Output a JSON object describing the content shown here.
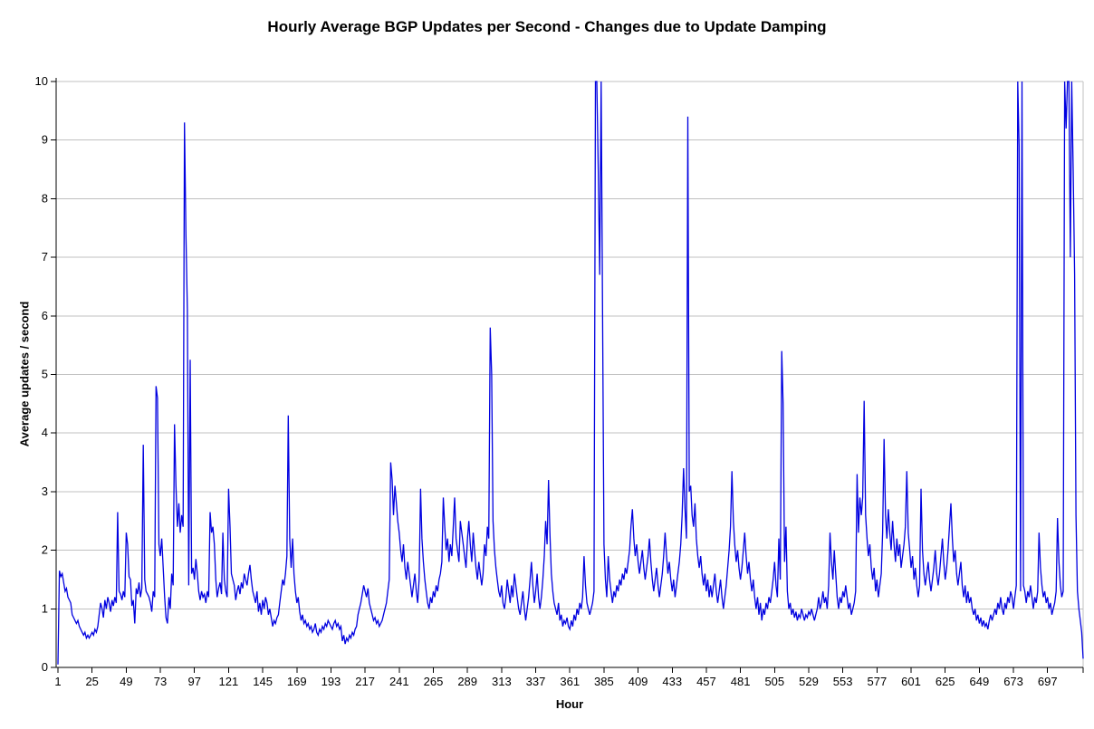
{
  "chart_data": {
    "type": "line",
    "title": "Hourly Average BGP Updates per Second - Changes due to Update Damping",
    "xlabel": "Hour",
    "ylabel": "Average updates / second",
    "xlim": [
      1,
      722
    ],
    "ylim": [
      0,
      10
    ],
    "xticks": [
      1,
      25,
      49,
      73,
      97,
      121,
      145,
      169,
      193,
      217,
      241,
      265,
      289,
      313,
      337,
      361,
      385,
      409,
      433,
      457,
      481,
      505,
      529,
      553,
      577,
      601,
      625,
      649,
      673,
      697
    ],
    "yticks": [
      0,
      1,
      2,
      3,
      4,
      5,
      6,
      7,
      8,
      9,
      10
    ],
    "grid": "horizontal",
    "legend": "none",
    "line_color": "#0000e0",
    "gridline_color": "#c0c0c0",
    "axis_color": "#000000",
    "background_color": "#ffffff",
    "x_unit": "hour",
    "series": [
      {
        "name": "Hourly average BGP updates per second",
        "color": "#0000e0",
        "values": [
          0.05,
          1.65,
          1.55,
          1.6,
          1.45,
          1.3,
          1.35,
          1.2,
          1.15,
          1.1,
          0.9,
          0.85,
          0.8,
          0.75,
          0.8,
          0.7,
          0.65,
          0.6,
          0.55,
          0.6,
          0.5,
          0.55,
          0.5,
          0.55,
          0.6,
          0.55,
          0.65,
          0.6,
          0.7,
          0.9,
          1.1,
          1.0,
          0.85,
          1.15,
          1.0,
          1.2,
          1.1,
          0.95,
          1.15,
          1.05,
          1.2,
          1.1,
          2.65,
          1.3,
          1.25,
          1.15,
          1.3,
          1.2,
          2.3,
          2.1,
          1.55,
          1.5,
          1.05,
          1.15,
          0.75,
          1.35,
          1.25,
          1.45,
          1.2,
          1.35,
          3.8,
          1.5,
          1.3,
          1.25,
          1.2,
          1.1,
          0.95,
          1.3,
          1.2,
          4.8,
          4.6,
          2.1,
          1.9,
          2.2,
          1.7,
          1.2,
          0.85,
          0.75,
          1.2,
          1.0,
          1.6,
          1.4,
          4.15,
          3.1,
          2.4,
          2.8,
          2.3,
          2.6,
          2.4,
          9.3,
          7.4,
          6.1,
          1.4,
          5.25,
          1.6,
          1.7,
          1.5,
          1.85,
          1.6,
          1.3,
          1.15,
          1.3,
          1.2,
          1.25,
          1.1,
          1.3,
          1.2,
          2.65,
          2.3,
          2.4,
          2.1,
          1.5,
          1.2,
          1.35,
          1.45,
          1.25,
          2.3,
          1.5,
          1.3,
          1.2,
          3.05,
          2.4,
          1.6,
          1.5,
          1.4,
          1.15,
          1.3,
          1.4,
          1.25,
          1.45,
          1.35,
          1.6,
          1.5,
          1.4,
          1.6,
          1.75,
          1.5,
          1.3,
          1.2,
          1.1,
          1.3,
          0.95,
          1.1,
          0.9,
          1.15,
          1.0,
          1.2,
          1.1,
          0.9,
          1.0,
          0.85,
          0.7,
          0.8,
          0.75,
          0.85,
          0.9,
          1.1,
          1.3,
          1.5,
          1.4,
          1.6,
          1.9,
          4.3,
          2.2,
          1.7,
          2.2,
          1.6,
          1.3,
          1.1,
          1.2,
          0.95,
          0.8,
          0.9,
          0.75,
          0.8,
          0.7,
          0.75,
          0.65,
          0.7,
          0.6,
          0.65,
          0.75,
          0.6,
          0.55,
          0.65,
          0.6,
          0.7,
          0.65,
          0.75,
          0.7,
          0.8,
          0.75,
          0.7,
          0.65,
          0.75,
          0.8,
          0.7,
          0.75,
          0.65,
          0.7,
          0.45,
          0.55,
          0.4,
          0.5,
          0.45,
          0.55,
          0.5,
          0.6,
          0.55,
          0.65,
          0.7,
          0.9,
          1.0,
          1.1,
          1.25,
          1.4,
          1.3,
          1.2,
          1.35,
          1.1,
          1.0,
          0.9,
          0.8,
          0.85,
          0.75,
          0.8,
          0.7,
          0.75,
          0.8,
          0.9,
          1.0,
          1.1,
          1.3,
          1.5,
          3.5,
          3.2,
          2.6,
          3.1,
          2.8,
          2.5,
          2.3,
          2.0,
          1.8,
          2.1,
          1.7,
          1.5,
          1.8,
          1.6,
          1.4,
          1.2,
          1.4,
          1.6,
          1.3,
          1.1,
          1.5,
          3.05,
          2.2,
          1.8,
          1.5,
          1.3,
          1.1,
          1.0,
          1.2,
          1.1,
          1.3,
          1.2,
          1.4,
          1.3,
          1.5,
          1.6,
          1.8,
          2.9,
          2.4,
          2.0,
          2.2,
          1.8,
          2.1,
          1.9,
          2.4,
          2.9,
          2.2,
          2.0,
          1.8,
          2.5,
          2.3,
          2.1,
          1.9,
          1.7,
          2.2,
          2.5,
          2.1,
          1.8,
          2.3,
          2.0,
          1.7,
          1.5,
          1.8,
          1.6,
          1.4,
          1.6,
          2.1,
          1.9,
          2.4,
          2.2,
          5.8,
          5.0,
          2.5,
          2.0,
          1.7,
          1.5,
          1.3,
          1.2,
          1.4,
          1.1,
          1.0,
          1.2,
          1.5,
          1.3,
          1.1,
          1.4,
          1.2,
          1.6,
          1.4,
          1.2,
          1.0,
          0.9,
          1.1,
          1.3,
          1.0,
          0.8,
          1.0,
          1.2,
          1.5,
          1.8,
          1.4,
          1.1,
          1.3,
          1.6,
          1.2,
          1.0,
          1.2,
          1.5,
          1.9,
          2.5,
          2.1,
          3.2,
          2.3,
          1.6,
          1.3,
          1.1,
          1.0,
          0.9,
          1.1,
          0.8,
          0.9,
          0.7,
          0.8,
          0.75,
          0.85,
          0.7,
          0.65,
          0.8,
          0.7,
          0.9,
          0.8,
          1.0,
          0.9,
          1.1,
          1.0,
          1.2,
          1.9,
          1.4,
          1.1,
          1.0,
          0.9,
          1.0,
          1.1,
          1.3,
          10,
          10,
          8.5,
          6.7,
          10,
          6.2,
          2.1,
          1.5,
          1.2,
          1.9,
          1.5,
          1.3,
          1.1,
          1.3,
          1.2,
          1.4,
          1.3,
          1.5,
          1.4,
          1.6,
          1.5,
          1.7,
          1.6,
          1.8,
          2.0,
          2.4,
          2.7,
          2.2,
          1.9,
          2.1,
          1.8,
          1.6,
          1.8,
          2.0,
          1.7,
          1.5,
          1.7,
          1.9,
          2.2,
          1.8,
          1.5,
          1.3,
          1.5,
          1.7,
          1.4,
          1.2,
          1.4,
          1.6,
          1.9,
          2.3,
          1.9,
          1.6,
          1.8,
          1.5,
          1.3,
          1.5,
          1.2,
          1.4,
          1.6,
          1.8,
          2.1,
          2.6,
          3.4,
          2.7,
          2.2,
          9.4,
          3.0,
          3.1,
          2.6,
          2.4,
          2.8,
          2.2,
          1.9,
          1.7,
          1.9,
          1.6,
          1.4,
          1.6,
          1.3,
          1.5,
          1.2,
          1.4,
          1.2,
          1.4,
          1.6,
          1.3,
          1.1,
          1.3,
          1.5,
          1.2,
          1.0,
          1.2,
          1.4,
          1.7,
          2.0,
          2.4,
          3.35,
          2.5,
          2.1,
          1.8,
          2.0,
          1.7,
          1.5,
          1.7,
          2.0,
          2.3,
          1.9,
          1.6,
          1.8,
          1.5,
          1.3,
          1.5,
          1.2,
          1.0,
          1.2,
          0.9,
          1.1,
          0.8,
          1.0,
          0.9,
          1.1,
          1.0,
          1.2,
          1.1,
          1.3,
          1.5,
          1.8,
          1.4,
          1.2,
          2.2,
          1.5,
          5.4,
          4.5,
          1.8,
          2.4,
          1.3,
          1.0,
          1.1,
          0.9,
          1.0,
          0.85,
          0.95,
          0.8,
          0.9,
          0.85,
          1.0,
          0.9,
          0.8,
          0.9,
          0.85,
          0.95,
          0.9,
          1.0,
          0.9,
          0.8,
          0.9,
          1.0,
          1.2,
          1.0,
          1.1,
          1.3,
          1.1,
          1.2,
          1.0,
          1.4,
          2.3,
          1.8,
          1.5,
          2.0,
          1.6,
          1.2,
          1.0,
          1.2,
          1.1,
          1.3,
          1.2,
          1.4,
          1.2,
          1.0,
          1.1,
          0.9,
          1.0,
          1.1,
          1.3,
          3.3,
          2.3,
          2.9,
          2.6,
          2.9,
          4.55,
          2.6,
          2.2,
          1.9,
          2.1,
          1.7,
          1.5,
          1.7,
          1.3,
          1.5,
          1.2,
          1.4,
          1.6,
          2.3,
          3.9,
          2.6,
          2.2,
          2.7,
          2.3,
          2.0,
          2.5,
          2.1,
          1.8,
          2.2,
          1.9,
          2.1,
          1.7,
          1.9,
          2.1,
          2.4,
          3.35,
          2.3,
          2.0,
          1.7,
          1.9,
          1.5,
          1.7,
          1.4,
          1.2,
          1.4,
          3.05,
          2.0,
          1.6,
          1.4,
          1.6,
          1.8,
          1.5,
          1.3,
          1.5,
          1.7,
          2.0,
          1.6,
          1.4,
          1.6,
          1.9,
          2.2,
          1.8,
          1.5,
          1.7,
          2.0,
          2.4,
          2.8,
          2.2,
          1.8,
          2.0,
          1.6,
          1.4,
          1.6,
          1.8,
          1.4,
          1.2,
          1.4,
          1.1,
          1.3,
          1.1,
          1.2,
          1.0,
          0.9,
          1.0,
          0.8,
          0.9,
          0.75,
          0.85,
          0.7,
          0.8,
          0.7,
          0.75,
          0.65,
          0.8,
          0.9,
          0.8,
          0.9,
          1.0,
          0.9,
          1.1,
          1.0,
          1.2,
          1.0,
          0.9,
          1.1,
          1.0,
          1.2,
          1.1,
          1.3,
          1.2,
          1.0,
          1.2,
          1.4,
          10,
          8.9,
          1.3,
          10,
          1.4,
          1.3,
          1.1,
          1.3,
          1.2,
          1.4,
          1.2,
          1.0,
          1.2,
          1.1,
          1.3,
          2.3,
          1.7,
          1.4,
          1.2,
          1.3,
          1.1,
          1.2,
          1.0,
          1.1,
          0.9,
          1.0,
          1.1,
          1.3,
          2.55,
          1.8,
          1.4,
          1.2,
          1.3,
          10,
          9.2,
          10,
          10,
          7.0,
          10,
          8.5,
          6.7,
          2.6,
          1.3,
          1.0,
          0.8,
          0.6,
          0.15
        ]
      }
    ]
  }
}
